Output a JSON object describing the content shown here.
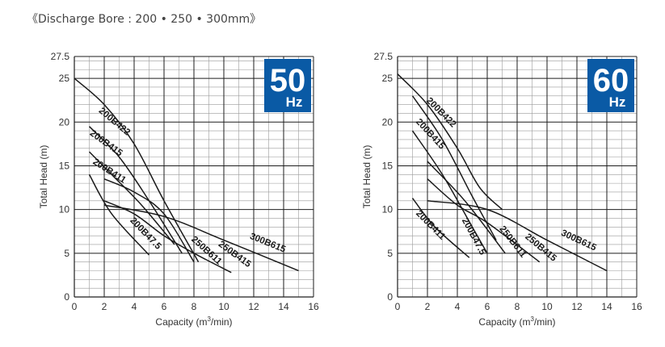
{
  "caption": "《Discharge Bore : 200 • 250 • 300mm》",
  "colors": {
    "badge": "#0a5aa5",
    "line": "#1a1a1a",
    "grid": "#1e1e1e"
  },
  "chart_data": [
    {
      "type": "line",
      "badge_number": "50",
      "badge_unit": "Hz",
      "xlabel": "Capacity (m",
      "xlabel_sup": "3",
      "xlabel_end": "/min)",
      "ylabel": "Total Head (m)",
      "xlim": [
        0,
        16
      ],
      "ylim": [
        0,
        27.5
      ],
      "xticks": [
        "0",
        "2",
        "4",
        "6",
        "8",
        "10",
        "12",
        "14",
        "16"
      ],
      "yticks": [
        "0",
        "5",
        "10",
        "15",
        "20",
        "25",
        "27.5"
      ],
      "grid": true,
      "series": [
        {
          "name": "200B422",
          "x": [
            0,
            2,
            4,
            6,
            8.3
          ],
          "y": [
            25,
            22,
            17.5,
            11,
            4
          ]
        },
        {
          "name": "200B415",
          "x": [
            1,
            3,
            5,
            7.2
          ],
          "y": [
            19.5,
            16,
            11,
            5
          ]
        },
        {
          "name": "200B411",
          "x": [
            1,
            2.5,
            4.5,
            6.7
          ],
          "y": [
            16.6,
            14,
            10.5,
            6
          ]
        },
        {
          "name": "200B47.5",
          "x": [
            1,
            2.5,
            5
          ],
          "y": [
            14,
            9.5,
            4.8
          ]
        },
        {
          "name": "250B611",
          "x": [
            2,
            4,
            6,
            8
          ],
          "y": [
            13.5,
            12,
            9.5,
            4
          ]
        },
        {
          "name": "250B415",
          "x": [
            2,
            4,
            6,
            8,
            10.5
          ],
          "y": [
            11,
            9.5,
            7,
            5,
            2.8
          ]
        },
        {
          "name": "300B615",
          "x": [
            2,
            6,
            10,
            15
          ],
          "y": [
            10.5,
            9.2,
            6.5,
            3
          ]
        }
      ]
    },
    {
      "type": "line",
      "badge_number": "60",
      "badge_unit": "Hz",
      "xlabel": "Capacity (m",
      "xlabel_sup": "3",
      "xlabel_end": "/min)",
      "ylabel": "Total Head (m)",
      "xlim": [
        0,
        16
      ],
      "ylim": [
        0,
        27.5
      ],
      "xticks": [
        "0",
        "2",
        "4",
        "6",
        "8",
        "10",
        "12",
        "14",
        "16"
      ],
      "yticks": [
        "0",
        "5",
        "10",
        "15",
        "20",
        "25",
        "27.5"
      ],
      "grid": true,
      "series": [
        {
          "name": "200B422",
          "x": [
            0,
            2,
            4,
            5.5,
            7
          ],
          "y": [
            25.5,
            22,
            17,
            12.5,
            10
          ]
        },
        {
          "name": "200B415",
          "x": [
            1,
            3,
            5,
            6.6
          ],
          "y": [
            23,
            18,
            11.5,
            6.5
          ]
        },
        {
          "name": "200B411",
          "x": [
            1,
            3,
            5,
            6
          ],
          "y": [
            19,
            14,
            8,
            5
          ]
        },
        {
          "name": "200B47.5",
          "x": [
            1,
            2.5,
            4.8
          ],
          "y": [
            11.3,
            8,
            4.5
          ]
        },
        {
          "name": "250B611",
          "x": [
            2,
            4.5,
            7.2
          ],
          "y": [
            15.5,
            11,
            5
          ]
        },
        {
          "name": "250B415",
          "x": [
            2,
            4,
            6,
            9.5
          ],
          "y": [
            13.5,
            10.5,
            8.5,
            4
          ]
        },
        {
          "name": "300B615",
          "x": [
            2,
            6,
            10,
            14
          ],
          "y": [
            11,
            10,
            6.5,
            3
          ]
        }
      ]
    }
  ]
}
